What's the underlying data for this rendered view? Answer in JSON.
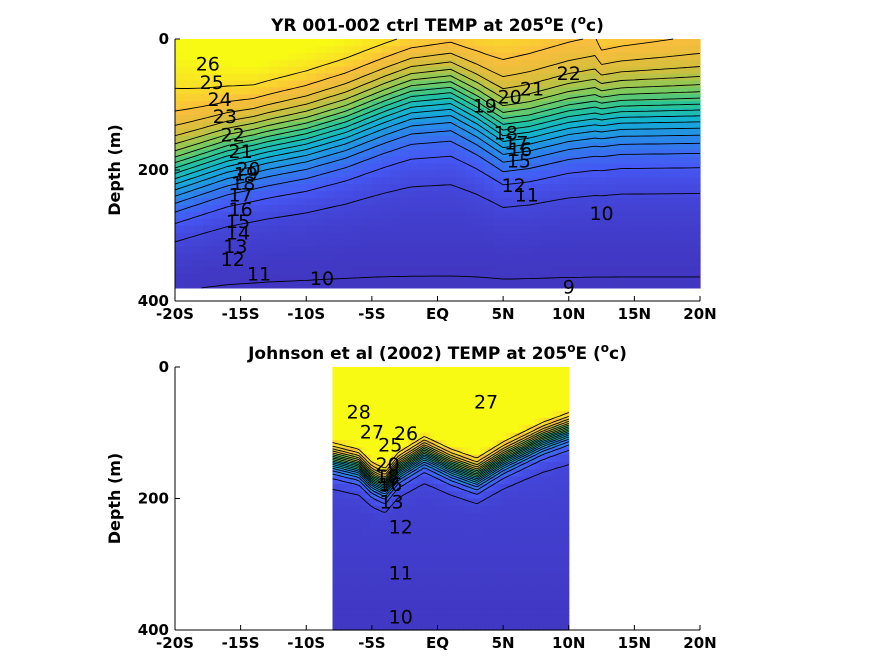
{
  "chart_data": [
    {
      "type": "contour",
      "title_main": "YR 001-002 ctrl TEMP at 205",
      "title_sup": "o",
      "title_end": "E (",
      "title_unit_sup": "o",
      "title_unit": "c)",
      "ylabel": "Depth (m)",
      "xlim": [
        -20,
        20
      ],
      "ylim": [
        0,
        400
      ],
      "xticks": [
        -20,
        -15,
        -10,
        -5,
        0,
        5,
        10,
        15,
        20
      ],
      "xtick_labels": [
        "-20S",
        "-15S",
        "-10S",
        "-5S",
        "EQ",
        "5N",
        "10N",
        "15N",
        "20N"
      ],
      "yticks": [
        0,
        200,
        400
      ],
      "ytick_labels": [
        "0",
        "200",
        "400"
      ],
      "data_extent": {
        "x": [
          -20,
          20
        ],
        "y": [
          0,
          380
        ]
      },
      "thermocline_x": [
        -20,
        -16,
        -13,
        -10,
        -7,
        -4,
        -2,
        1,
        3,
        5,
        7,
        10,
        14,
        20
      ],
      "thermocline_depth": [
        205,
        175,
        160,
        148,
        130,
        105,
        90,
        85,
        110,
        140,
        135,
        120,
        110,
        110
      ],
      "contour_labels": [
        {
          "text": "26",
          "x": -17.5,
          "y": 40
        },
        {
          "text": "25",
          "x": -17.2,
          "y": 68
        },
        {
          "text": "24",
          "x": -16.6,
          "y": 94
        },
        {
          "text": "23",
          "x": -16.2,
          "y": 120
        },
        {
          "text": "22",
          "x": -15.6,
          "y": 148
        },
        {
          "text": "21",
          "x": -15.0,
          "y": 173
        },
        {
          "text": "20",
          "x": -14.4,
          "y": 200
        },
        {
          "text": "19",
          "x": -14.6,
          "y": 208
        },
        {
          "text": "18",
          "x": -14.8,
          "y": 222
        },
        {
          "text": "17",
          "x": -15.0,
          "y": 240
        },
        {
          "text": "16",
          "x": -15.0,
          "y": 262
        },
        {
          "text": "15",
          "x": -15.2,
          "y": 280
        },
        {
          "text": "14",
          "x": -15.2,
          "y": 298
        },
        {
          "text": "13",
          "x": -15.4,
          "y": 318
        },
        {
          "text": "12",
          "x": -15.6,
          "y": 338
        },
        {
          "text": "11",
          "x": -13.6,
          "y": 360
        },
        {
          "text": "10",
          "x": -8.8,
          "y": 367
        },
        {
          "text": "19",
          "x": 3.6,
          "y": 104
        },
        {
          "text": "20",
          "x": 5.5,
          "y": 90
        },
        {
          "text": "21",
          "x": 7.2,
          "y": 78
        },
        {
          "text": "22",
          "x": 10.0,
          "y": 54
        },
        {
          "text": "18",
          "x": 5.2,
          "y": 145
        },
        {
          "text": "17",
          "x": 6.0,
          "y": 160
        },
        {
          "text": "16",
          "x": 6.3,
          "y": 170
        },
        {
          "text": "15",
          "x": 6.2,
          "y": 188
        },
        {
          "text": "12",
          "x": 5.8,
          "y": 225
        },
        {
          "text": "11",
          "x": 6.8,
          "y": 240
        },
        {
          "text": "10",
          "x": 12.5,
          "y": 268
        },
        {
          "text": "9",
          "x": 10.0,
          "y": 380
        }
      ]
    },
    {
      "type": "contour",
      "title_main": "Johnson et al (2002) TEMP at 205",
      "title_sup": "o",
      "title_end": "E (",
      "title_unit_sup": "o",
      "title_unit": "c)",
      "ylabel": "Depth (m)",
      "xlim": [
        -20,
        20
      ],
      "ylim": [
        0,
        400
      ],
      "xticks": [
        -20,
        -15,
        -10,
        -5,
        0,
        5,
        10,
        15,
        20
      ],
      "xtick_labels": [
        "-20S",
        "-15S",
        "-10S",
        "-5S",
        "EQ",
        "5N",
        "10N",
        "15N",
        "20N"
      ],
      "yticks": [
        0,
        200,
        400
      ],
      "ytick_labels": [
        "0",
        "200",
        "400"
      ],
      "data_extent": {
        "x": [
          -8,
          10
        ],
        "y": [
          0,
          400
        ]
      },
      "thermocline_x": [
        -8,
        -6,
        -5,
        -4,
        -3,
        -1,
        1,
        3,
        5,
        7,
        8,
        10
      ],
      "thermocline_depth": [
        140,
        150,
        170,
        180,
        155,
        130,
        150,
        165,
        140,
        120,
        110,
        95
      ],
      "contour_labels": [
        {
          "text": "28",
          "x": -6.0,
          "y": 70
        },
        {
          "text": "27",
          "x": -5.0,
          "y": 100
        },
        {
          "text": "26",
          "x": -2.4,
          "y": 103
        },
        {
          "text": "27",
          "x": 3.7,
          "y": 55
        },
        {
          "text": "25",
          "x": -3.6,
          "y": 120
        },
        {
          "text": "20",
          "x": -3.8,
          "y": 150
        },
        {
          "text": "18",
          "x": -3.8,
          "y": 168
        },
        {
          "text": "16",
          "x": -3.6,
          "y": 180
        },
        {
          "text": "13",
          "x": -3.5,
          "y": 207
        },
        {
          "text": "12",
          "x": -2.8,
          "y": 245
        },
        {
          "text": "11",
          "x": -2.8,
          "y": 315
        },
        {
          "text": "10",
          "x": -2.8,
          "y": 382
        }
      ]
    }
  ]
}
